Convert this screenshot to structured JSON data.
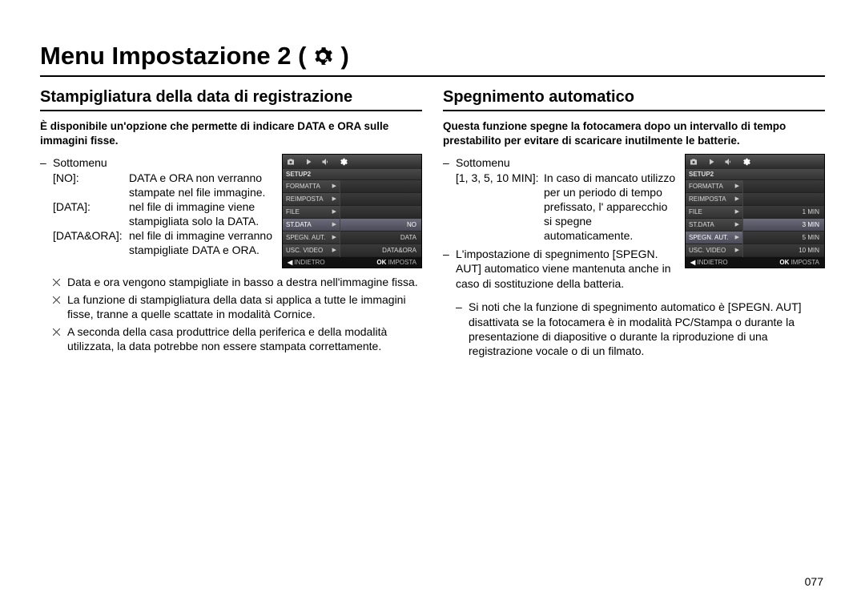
{
  "page": {
    "title": "Menu Impostazione 2 (",
    "title_close": ")",
    "number": "077"
  },
  "left": {
    "heading": "Stampigliatura della data di registrazione",
    "intro": "È disponibile un'opzione che permette di indicare DATA e ORA sulle immagini fisse.",
    "submenu": "Sottomenu",
    "defs": [
      {
        "key": "[NO]:",
        "val": "DATA e ORA non verranno stampate nel file immagine."
      },
      {
        "key": "[DATA]:",
        "val": "nel file di immagine viene stampigliata solo la DATA."
      },
      {
        "key": "[DATA&ORA]:",
        "val": "nel file di immagine verranno stampigliate DATA e ORA."
      }
    ],
    "notes": [
      "Data e ora vengono stampigliate in basso a destra nell'immagine fissa.",
      "La funzione di stampigliatura della data si applica a tutte le immagini fisse, tranne a quelle scattate in modalità Cornice.",
      "A seconda della casa produttrice della periferica e della modalità utilizzata, la data potrebbe non essere stampata correttamente."
    ],
    "lcd": {
      "setup_label": "SETUP2",
      "left_items": [
        "FORMATTA",
        "REIMPOSTA",
        "FILE",
        "ST.DATA",
        "SPEGN. AUT.",
        "USC. VIDEO"
      ],
      "selected_index": 3,
      "right_items": [
        "",
        "",
        "",
        "NO",
        "DATA",
        "DATA&ORA"
      ],
      "foot_left_icon": "◀",
      "foot_left": "INDIETRO",
      "foot_right_key": "OK",
      "foot_right": "IMPOSTA"
    }
  },
  "right": {
    "heading": "Spegnimento automatico",
    "intro": "Questa funzione spegne la fotocamera dopo un intervallo di tempo prestabilito per evitare di scaricare inutilmente le batterie.",
    "submenu": "Sottomenu",
    "def_key": "[1, 3, 5, 10 MIN]:",
    "def_val": "In caso di mancato utilizzo per un periodo di tempo prefissato, l' apparecchio si spegne automaticamente.",
    "extra_dash": "L'impostazione di spegnimento [SPEGN. AUT] automatico viene mantenuta anche in caso di sostituzione della batteria.",
    "note": "Si noti che la funzione di spegnimento automatico è [SPEGN. AUT] disattivata se la fotocamera è in modalità PC/Stampa o durante la presentazione di diapositive o durante la riproduzione di una registrazione vocale o di un filmato.",
    "lcd": {
      "setup_label": "SETUP2",
      "left_items": [
        "FORMATTA",
        "REIMPOSTA",
        "FILE",
        "ST.DATA",
        "SPEGN. AUT.",
        "USC. VIDEO"
      ],
      "selected_index": 4,
      "right_items": [
        "",
        "",
        "1 MIN",
        "3 MIN",
        "5 MIN",
        "10 MIN"
      ],
      "right_selected_index": 3,
      "foot_left_icon": "◀",
      "foot_left": "INDIETRO",
      "foot_right_key": "OK",
      "foot_right": "IMPOSTA"
    }
  },
  "colors": {
    "text": "#000000",
    "lcd_bg": "#1a1a1a",
    "lcd_row": "#3a3a3a",
    "lcd_sel": "#5a5a6a",
    "lcd_text": "#d8d8d8"
  }
}
